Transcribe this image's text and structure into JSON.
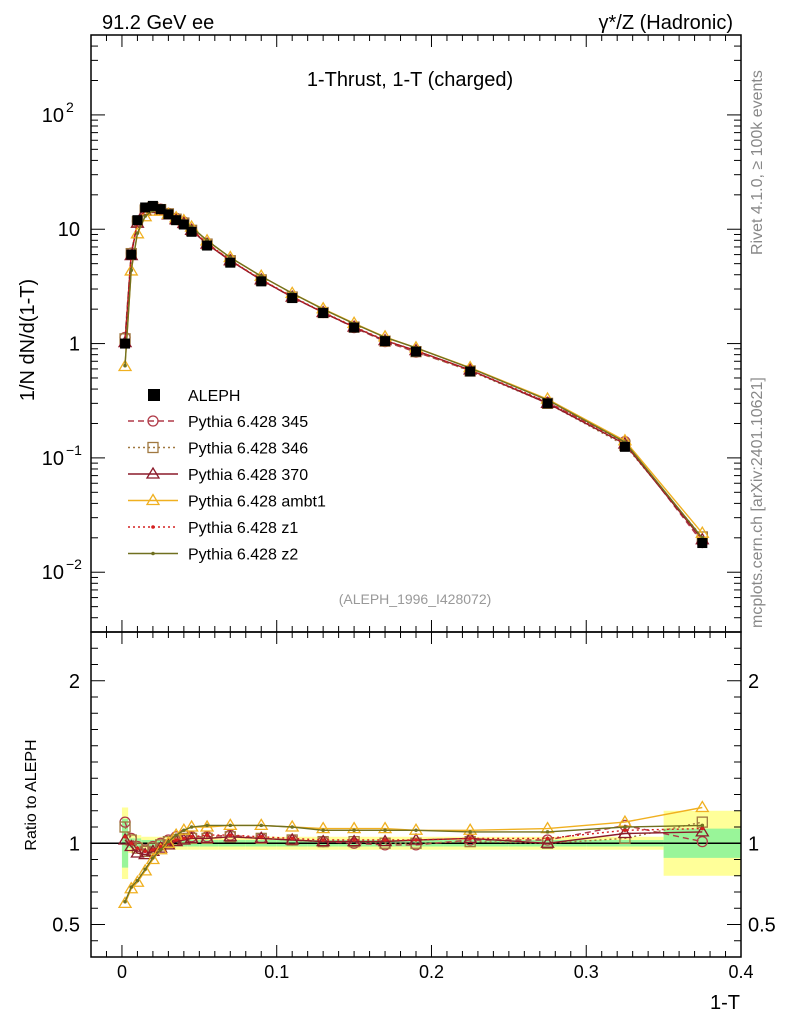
{
  "header": {
    "energy": "91.2 GeV ee",
    "process": "γ*/Z (Hadronic)"
  },
  "side_labels": {
    "rivet": "Rivet 4.1.0, ≥ 100k events",
    "mcplots": "mcplots.cern.ch [arXiv:2401.10621]"
  },
  "chart_data": {
    "type": "line",
    "title": "1-Thrust, 1-T (charged)",
    "xlabel": "1-T",
    "ylabel": "1/N  dN/d(1-T)",
    "ratio_ylabel": "Ratio to ALEPH",
    "analysis_id": "(ALEPH_1996_I428072)",
    "xlim": [
      -0.02,
      0.4
    ],
    "ylim": [
      0.003,
      500
    ],
    "ratio_ylim": [
      0.3,
      2.3
    ],
    "x_ticks": [
      "0",
      "0.1",
      "0.2",
      "0.3",
      "0.4"
    ],
    "y_ticks": [
      "10^-2",
      "10^-1",
      "1",
      "10",
      "10^2"
    ],
    "ratio_ticks": [
      "0.5",
      "1",
      "2"
    ],
    "x": [
      0.002,
      0.006,
      0.01,
      0.015,
      0.02,
      0.025,
      0.03,
      0.035,
      0.04,
      0.045,
      0.055,
      0.07,
      0.09,
      0.11,
      0.13,
      0.15,
      0.17,
      0.19,
      0.225,
      0.275,
      0.325,
      0.375
    ],
    "data": {
      "name": "ALEPH",
      "values": [
        1.0,
        6.0,
        12.0,
        15.5,
        16.0,
        15.0,
        13.5,
        12.0,
        11.0,
        9.5,
        7.2,
        5.1,
        3.5,
        2.5,
        1.85,
        1.38,
        1.05,
        0.85,
        0.57,
        0.3,
        0.125,
        0.018
      ],
      "ratio_band_inner": [
        0.15,
        0.03,
        0.03,
        0.02,
        0.02,
        0.02,
        0.02,
        0.02,
        0.02,
        0.02,
        0.02,
        0.02,
        0.02,
        0.02,
        0.02,
        0.02,
        0.02,
        0.02,
        0.02,
        0.02,
        0.02,
        0.09
      ],
      "ratio_band_outer": [
        0.22,
        0.06,
        0.05,
        0.04,
        0.04,
        0.04,
        0.04,
        0.04,
        0.04,
        0.04,
        0.04,
        0.04,
        0.04,
        0.04,
        0.04,
        0.04,
        0.04,
        0.04,
        0.04,
        0.04,
        0.04,
        0.2
      ]
    },
    "series": [
      {
        "name": "Pythia 6.428 345",
        "color": "#b03a48",
        "marker": "circle",
        "dash": "6,4",
        "ratio": [
          1.13,
          1.03,
          0.98,
          0.96,
          0.98,
          1.0,
          1.02,
          1.04,
          1.05,
          1.04,
          1.04,
          1.05,
          1.03,
          1.02,
          1.01,
          1.0,
          0.99,
          0.99,
          1.02,
          1.02,
          1.11,
          1.01
        ]
      },
      {
        "name": "Pythia 6.428 346",
        "color": "#a07840",
        "marker": "square",
        "dash": "2,3",
        "ratio": [
          1.1,
          1.02,
          0.97,
          0.95,
          0.97,
          0.99,
          1.01,
          1.02,
          1.03,
          1.03,
          1.03,
          1.04,
          1.03,
          1.02,
          1.01,
          1.01,
          1.0,
          1.0,
          1.01,
          1.0,
          1.03,
          1.13
        ]
      },
      {
        "name": "Pythia 6.428 370",
        "color": "#8b1a2a",
        "marker": "triangle",
        "dash": "",
        "ratio": [
          1.02,
          0.98,
          0.94,
          0.93,
          0.95,
          0.97,
          0.99,
          1.01,
          1.02,
          1.03,
          1.03,
          1.04,
          1.03,
          1.02,
          1.01,
          1.01,
          1.01,
          1.02,
          1.03,
          1.0,
          1.06,
          1.07
        ]
      },
      {
        "name": "Pythia 6.428 ambt1",
        "color": "#f0b020",
        "marker": "triangle",
        "dash": "",
        "ratio": [
          0.63,
          0.72,
          0.76,
          0.83,
          0.9,
          0.96,
          1.0,
          1.05,
          1.08,
          1.1,
          1.1,
          1.11,
          1.11,
          1.1,
          1.09,
          1.09,
          1.09,
          1.08,
          1.08,
          1.09,
          1.13,
          1.22
        ]
      },
      {
        "name": "Pythia 6.428 z1",
        "color": "#d42020",
        "marker": "dot",
        "dash": "2,3",
        "ratio": [
          1.04,
          1.0,
          0.97,
          0.95,
          0.96,
          0.98,
          1.0,
          1.02,
          1.03,
          1.04,
          1.05,
          1.05,
          1.04,
          1.03,
          1.02,
          1.02,
          1.02,
          1.02,
          1.03,
          1.03,
          1.08,
          1.09
        ]
      },
      {
        "name": "Pythia 6.428 z2",
        "color": "#707020",
        "marker": "dot",
        "dash": "",
        "ratio": [
          0.64,
          0.73,
          0.77,
          0.84,
          0.91,
          0.96,
          1.01,
          1.05,
          1.08,
          1.1,
          1.11,
          1.11,
          1.11,
          1.1,
          1.08,
          1.08,
          1.08,
          1.08,
          1.07,
          1.07,
          1.1,
          1.11
        ]
      }
    ]
  }
}
